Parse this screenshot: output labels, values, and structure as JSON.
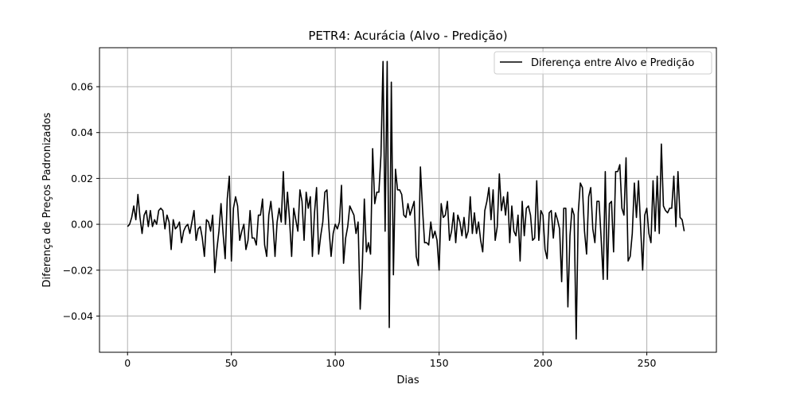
{
  "chart_data": {
    "type": "line",
    "title": "PETR4: Acurácia (Alvo - Predição)",
    "xlabel": "Dias",
    "ylabel": "Diferença de Preços Padronizados",
    "xlim": [
      -13.5,
      283.5
    ],
    "ylim": [
      -0.0558,
      0.077
    ],
    "x_ticks": [
      0,
      50,
      100,
      150,
      200,
      250
    ],
    "y_ticks": [
      -0.04,
      -0.02,
      0.0,
      0.02,
      0.04,
      0.06
    ],
    "x_tick_labels": [
      "0",
      "50",
      "100",
      "150",
      "200",
      "250"
    ],
    "y_tick_labels": [
      "−0.04",
      "−0.02",
      "0.00",
      "0.02",
      "0.04",
      "0.06"
    ],
    "grid": true,
    "legend_position": "top-right",
    "series": [
      {
        "name": "Diferença entre Alvo e Predição",
        "color": "#000000",
        "x_start": 0,
        "values": [
          -0.001,
          0.0,
          0.003,
          0.008,
          0.002,
          0.013,
          0.003,
          -0.004,
          0.004,
          0.006,
          -0.001,
          0.006,
          -0.001,
          0.002,
          0.0,
          0.006,
          0.007,
          0.006,
          -0.002,
          0.004,
          0.001,
          -0.011,
          0.002,
          -0.002,
          -0.001,
          0.001,
          -0.008,
          -0.003,
          -0.001,
          0.0,
          -0.004,
          0.001,
          0.006,
          -0.007,
          -0.002,
          -0.001,
          -0.006,
          -0.014,
          0.002,
          0.001,
          -0.003,
          0.004,
          -0.021,
          -0.011,
          -0.003,
          0.009,
          -0.004,
          -0.015,
          0.011,
          0.021,
          -0.016,
          0.007,
          0.012,
          0.008,
          -0.007,
          -0.003,
          0.0,
          -0.011,
          -0.007,
          0.006,
          -0.006,
          -0.006,
          -0.009,
          0.004,
          0.004,
          0.011,
          -0.009,
          -0.014,
          0.004,
          0.01,
          0.001,
          -0.014,
          0.001,
          0.007,
          0.001,
          0.023,
          0.0,
          0.014,
          0.002,
          -0.014,
          0.007,
          0.002,
          -0.003,
          0.015,
          0.01,
          -0.007,
          0.014,
          0.007,
          0.012,
          -0.014,
          0.005,
          0.016,
          -0.013,
          -0.005,
          0.001,
          0.014,
          0.015,
          -0.002,
          -0.014,
          -0.004,
          0.0,
          -0.002,
          0.001,
          0.017,
          -0.017,
          -0.006,
          -0.001,
          0.008,
          0.006,
          0.004,
          -0.004,
          0.001,
          -0.037,
          -0.019,
          0.011,
          -0.012,
          -0.008,
          -0.013,
          0.033,
          0.009,
          0.014,
          0.014,
          0.03,
          0.071,
          -0.003,
          0.071,
          -0.045,
          0.062,
          -0.022,
          0.024,
          0.015,
          0.015,
          0.013,
          0.004,
          0.003,
          0.009,
          0.004,
          0.007,
          0.01,
          -0.014,
          -0.018,
          0.025,
          0.007,
          -0.008,
          -0.008,
          -0.009,
          0.001,
          -0.006,
          -0.003,
          -0.007,
          -0.02,
          0.009,
          0.003,
          0.004,
          0.01,
          -0.007,
          -0.003,
          0.005,
          -0.008,
          0.004,
          0.001,
          -0.005,
          0.003,
          -0.006,
          -0.003,
          0.012,
          -0.004,
          0.005,
          -0.004,
          0.001,
          -0.007,
          -0.012,
          0.006,
          0.01,
          0.016,
          0.002,
          0.015,
          -0.007,
          -0.001,
          0.022,
          0.006,
          0.012,
          0.004,
          0.014,
          -0.008,
          0.008,
          -0.003,
          -0.005,
          0.004,
          -0.016,
          0.01,
          -0.005,
          0.007,
          0.008,
          0.004,
          -0.007,
          -0.006,
          0.019,
          -0.007,
          0.006,
          0.004,
          -0.011,
          -0.015,
          0.005,
          0.006,
          -0.006,
          0.005,
          0.002,
          -0.002,
          -0.025,
          0.007,
          0.007,
          -0.036,
          -0.005,
          0.007,
          0.004,
          -0.05,
          0.005,
          0.018,
          0.016,
          -0.003,
          -0.013,
          0.012,
          0.016,
          -0.002,
          -0.008,
          0.01,
          0.01,
          -0.006,
          -0.024,
          0.023,
          -0.024,
          0.009,
          0.01,
          -0.012,
          0.023,
          0.023,
          0.026,
          0.007,
          0.004,
          0.029,
          -0.016,
          -0.014,
          -0.004,
          0.018,
          0.003,
          0.019,
          -0.001,
          -0.02,
          0.004,
          0.007,
          -0.004,
          -0.008,
          0.019,
          -0.003,
          0.021,
          -0.004,
          0.035,
          0.008,
          0.006,
          0.005,
          0.007,
          0.007,
          0.021,
          -0.001,
          0.023,
          0.003,
          0.002,
          -0.003
        ]
      }
    ]
  }
}
